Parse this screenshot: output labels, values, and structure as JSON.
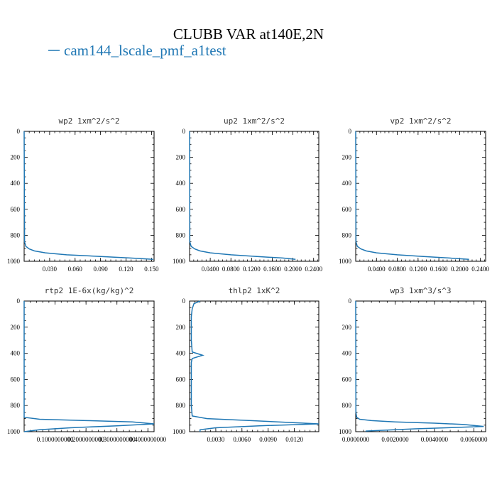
{
  "figure": {
    "title": "CLUBB VAR at140E,2N",
    "legend": "cam144_lscale_pmf_a1test",
    "series_color": "#1f77b4"
  },
  "chart_data": [
    {
      "type": "line",
      "title": "wp2   1xm^2/s^2",
      "series": [
        {
          "name": "cam144_lscale_pmf_a1test",
          "x": [
            0,
            0.0005,
            0.002,
            0.006,
            0.012,
            0.025,
            0.05,
            0.09,
            0.125,
            0.152
          ],
          "y": [
            0,
            850,
            885,
            905,
            920,
            935,
            950,
            963,
            975,
            985
          ]
        }
      ],
      "xlim": [
        0,
        0.153
      ],
      "ylim": [
        0,
        1000
      ],
      "xticks": [
        0.03,
        0.06,
        0.09,
        0.12,
        0.15
      ],
      "xticklabels": [
        "0.030",
        "0.060",
        "0.090",
        "0.120",
        "0.150"
      ],
      "yticks": [
        0,
        200,
        400,
        600,
        800,
        1000
      ],
      "yticklabels": [
        "0",
        "200",
        "400",
        "600",
        "800",
        "1000"
      ]
    },
    {
      "type": "line",
      "title": "up2   1xm^2/s^2",
      "series": [
        {
          "name": "cam144_lscale_pmf_a1test",
          "x": [
            0,
            0.0005,
            0.003,
            0.01,
            0.02,
            0.04,
            0.08,
            0.13,
            0.18,
            0.205
          ],
          "y": [
            0,
            850,
            885,
            905,
            920,
            935,
            950,
            963,
            975,
            985
          ]
        }
      ],
      "xlim": [
        0,
        0.25
      ],
      "ylim": [
        0,
        1000
      ],
      "xticks": [
        0.04,
        0.08,
        0.12,
        0.16,
        0.2,
        0.24
      ],
      "xticklabels": [
        "0.0400",
        "0.0800",
        "0.1200",
        "0.1600",
        "0.2000",
        "0.2400"
      ],
      "yticks": [
        0,
        200,
        400,
        600,
        800,
        1000
      ],
      "yticklabels": [
        "0",
        "200",
        "400",
        "600",
        "800",
        "1000"
      ]
    },
    {
      "type": "line",
      "title": "vp2   1xm^2/s^2",
      "series": [
        {
          "name": "cam144_lscale_pmf_a1test",
          "x": [
            0,
            0.0005,
            0.003,
            0.01,
            0.02,
            0.04,
            0.08,
            0.13,
            0.18,
            0.218
          ],
          "y": [
            0,
            850,
            885,
            905,
            920,
            935,
            950,
            963,
            975,
            985
          ]
        }
      ],
      "xlim": [
        0,
        0.25
      ],
      "ylim": [
        0,
        1000
      ],
      "xticks": [
        0.04,
        0.08,
        0.12,
        0.16,
        0.2,
        0.24
      ],
      "xticklabels": [
        "0.0400",
        "0.0800",
        "0.1200",
        "0.1600",
        "0.2000",
        "0.2400"
      ],
      "yticks": [
        0,
        200,
        400,
        600,
        800,
        1000
      ],
      "yticklabels": [
        "0",
        "200",
        "400",
        "600",
        "800",
        "1000"
      ]
    },
    {
      "type": "line",
      "title": "rtp2   1E-6x(kg/kg)^2",
      "series": [
        {
          "name": "cam144_lscale_pmf_a1test",
          "x": [
            0,
            2e-06,
            1e-05,
            0.05,
            0.2,
            0.35,
            0.42,
            0.3,
            0.15,
            0.05,
            0.0
          ],
          "y": [
            0,
            850,
            890,
            905,
            915,
            925,
            940,
            955,
            970,
            985,
            1000
          ]
        }
      ],
      "xlim": [
        0,
        0.42
      ],
      "ylim": [
        0,
        1000
      ],
      "xticks": [
        0.1,
        0.2,
        0.3,
        0.4
      ],
      "xticklabels": [
        "0.1000000000",
        "0.2000000000",
        "0.3000000000",
        "0.4000000000"
      ],
      "yticks": [
        0,
        200,
        400,
        600,
        800,
        1000
      ],
      "yticklabels": [
        "0",
        "200",
        "400",
        "600",
        "800",
        "1000"
      ]
    },
    {
      "type": "line",
      "title": "thlp2   1xK^2",
      "series": [
        {
          "name": "cam144_lscale_pmf_a1test",
          "x": [
            0.0012,
            0.0005,
            0.0003,
            0.0002,
            0.0002,
            0.0003,
            0.0015,
            0.0003,
            0.0002,
            0.0002,
            0.0003,
            0.002,
            0.007,
            0.011,
            0.0148,
            0.008,
            0.003,
            0.0012,
            0.0012
          ],
          "y": [
            0,
            20,
            60,
            120,
            300,
            390,
            415,
            440,
            470,
            800,
            880,
            900,
            915,
            928,
            940,
            955,
            970,
            985,
            1000
          ]
        }
      ],
      "xlim": [
        0,
        0.0148
      ],
      "ylim": [
        0,
        1000
      ],
      "xticks": [
        0.003,
        0.006,
        0.009,
        0.012
      ],
      "xticklabels": [
        "0.0030",
        "0.0060",
        "0.0090",
        "0.0120"
      ],
      "yticks": [
        0,
        200,
        400,
        600,
        800,
        1000
      ],
      "yticklabels": [
        "0",
        "200",
        "400",
        "600",
        "800",
        "1000"
      ]
    },
    {
      "type": "line",
      "title": "wp3   1xm^3/s^3",
      "series": [
        {
          "name": "cam144_lscale_pmf_a1test",
          "x": [
            0,
            1e-05,
            5e-05,
            0.0002,
            0.0008,
            0.002,
            0.004,
            0.0055,
            0.0065,
            0.005,
            0.003,
            0.0005
          ],
          "y": [
            0,
            850,
            890,
            905,
            915,
            925,
            935,
            945,
            960,
            968,
            978,
            995
          ]
        }
      ],
      "xlim": [
        0,
        0.0066
      ],
      "ylim": [
        0,
        1000
      ],
      "xticks": [
        0,
        0.002,
        0.004,
        0.006
      ],
      "xticklabels": [
        "0.0000000",
        "0.0020000",
        "0.0040000",
        "0.0060000"
      ],
      "yticks": [
        0,
        200,
        400,
        600,
        800,
        1000
      ],
      "yticklabels": [
        "0",
        "200",
        "400",
        "600",
        "800",
        "1000"
      ]
    }
  ]
}
